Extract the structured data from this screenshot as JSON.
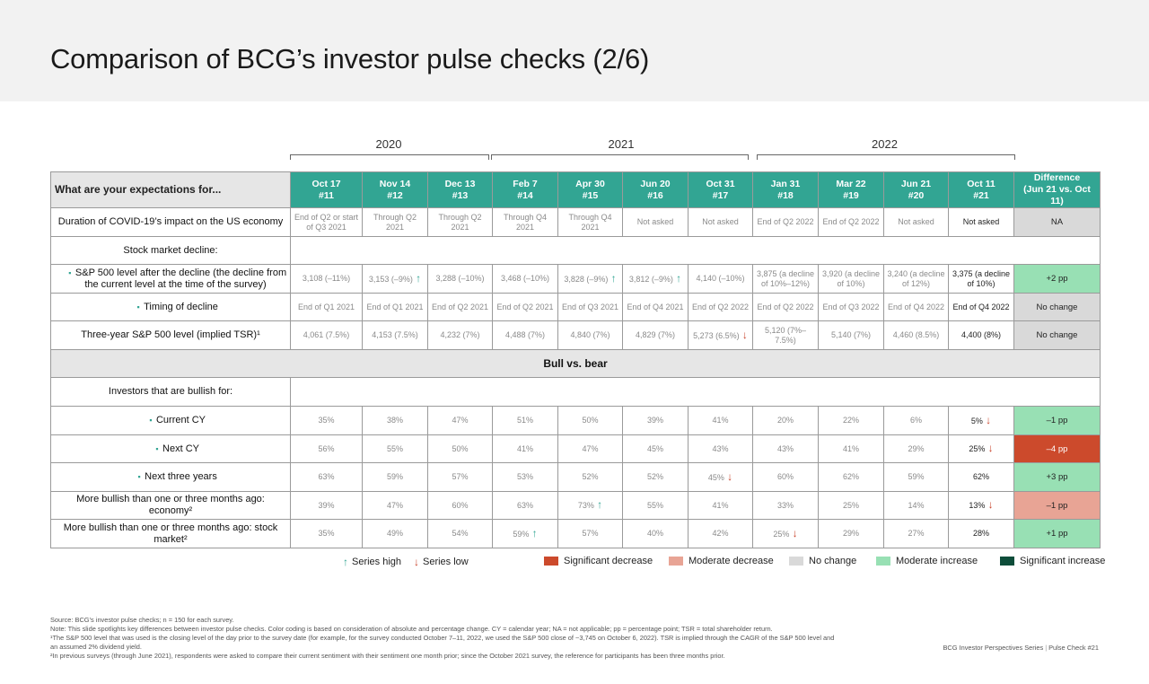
{
  "title": "Comparison of BCG’s investor pulse checks (2/6)",
  "years": [
    "2020",
    "2021",
    "2022"
  ],
  "question_header": "What are your expectations for...",
  "columns": [
    {
      "date": "Oct 17",
      "num": "#11"
    },
    {
      "date": "Nov 14",
      "num": "#12"
    },
    {
      "date": "Dec 13",
      "num": "#13"
    },
    {
      "date": "Feb 7",
      "num": "#14"
    },
    {
      "date": "Apr 30",
      "num": "#15"
    },
    {
      "date": "Jun 20",
      "num": "#16"
    },
    {
      "date": "Oct 31",
      "num": "#17"
    },
    {
      "date": "Jan 31",
      "num": "#18"
    },
    {
      "date": "Mar 22",
      "num": "#19"
    },
    {
      "date": "Jun 21",
      "num": "#20"
    },
    {
      "date": "Oct 11",
      "num": "#21"
    }
  ],
  "diff_header": {
    "line1": "Difference",
    "line2": "(Jun 21 vs. Oct 11)"
  },
  "rows": [
    {
      "type": "data",
      "label": "Duration of COVID-19’s impact on the US economy",
      "level": "main",
      "cells": [
        {
          "t": "End of Q2 or start of Q3 2021"
        },
        {
          "t": "Through Q2 2021"
        },
        {
          "t": "Through Q2 2021"
        },
        {
          "t": "Through Q4 2021"
        },
        {
          "t": "Through Q4 2021"
        },
        {
          "t": "Not asked"
        },
        {
          "t": "Not asked"
        },
        {
          "t": "End of Q2 2022"
        },
        {
          "t": "End of Q2 2022"
        },
        {
          "t": "Not asked"
        },
        {
          "t": "Not asked"
        }
      ],
      "diff": {
        "t": "NA",
        "color": "#d9d9d9"
      }
    },
    {
      "type": "heading",
      "label": "Stock market decline:"
    },
    {
      "type": "data",
      "label": "S&P 500 level after the decline (the decline from the current level at the time of the survey)",
      "level": "sub",
      "cells": [
        {
          "t": "3,108 (–11%)"
        },
        {
          "t": "3,153 (–9%)",
          "a": "up"
        },
        {
          "t": "3,288 (–10%)"
        },
        {
          "t": "3,468 (–10%)"
        },
        {
          "t": "3,828 (–9%)",
          "a": "up"
        },
        {
          "t": "3,812 (–9%)",
          "a": "up"
        },
        {
          "t": "4,140 (–10%)"
        },
        {
          "t": "3,875 (a decline of 10%–12%)"
        },
        {
          "t": "3,920 (a decline of 10%)"
        },
        {
          "t": "3,240 (a decline of 12%)"
        },
        {
          "t": "3,375 (a decline of 10%)"
        }
      ],
      "diff": {
        "t": "+2 pp",
        "color": "#98e0b4"
      }
    },
    {
      "type": "data",
      "label": "Timing of decline",
      "level": "sub",
      "cells": [
        {
          "t": "End of Q1 2021"
        },
        {
          "t": "End of Q1 2021"
        },
        {
          "t": "End of Q2 2021"
        },
        {
          "t": "End of Q2 2021"
        },
        {
          "t": "End of Q3 2021"
        },
        {
          "t": "End of Q4 2021"
        },
        {
          "t": "End of Q2 2022"
        },
        {
          "t": "End of Q2 2022"
        },
        {
          "t": "End of Q3 2022"
        },
        {
          "t": "End of Q4 2022"
        },
        {
          "t": "End of Q4 2022"
        }
      ],
      "diff": {
        "t": "No change",
        "color": "#d9d9d9"
      }
    },
    {
      "type": "data",
      "label": "Three-year S&P 500 level (implied TSR)¹",
      "level": "main",
      "cells": [
        {
          "t": "4,061 (7.5%)"
        },
        {
          "t": "4,153 (7.5%)"
        },
        {
          "t": "4,232 (7%)"
        },
        {
          "t": "4,488 (7%)"
        },
        {
          "t": "4,840 (7%)"
        },
        {
          "t": "4,829 (7%)"
        },
        {
          "t": "5,273 (6.5%)",
          "a": "down"
        },
        {
          "t": "5,120 (7%– 7.5%)"
        },
        {
          "t": "5,140 (7%)"
        },
        {
          "t": "4,460 (8.5%)"
        },
        {
          "t": "4,400 (8%)"
        }
      ],
      "diff": {
        "t": "No change",
        "color": "#d9d9d9"
      }
    },
    {
      "type": "section",
      "label": "Bull vs. bear"
    },
    {
      "type": "heading",
      "label": "Investors that are bullish for:"
    },
    {
      "type": "data",
      "label": "Current CY",
      "level": "sub",
      "cells": [
        {
          "t": "35%"
        },
        {
          "t": "38%"
        },
        {
          "t": "47%"
        },
        {
          "t": "51%"
        },
        {
          "t": "50%"
        },
        {
          "t": "39%"
        },
        {
          "t": "41%"
        },
        {
          "t": "20%"
        },
        {
          "t": "22%"
        },
        {
          "t": "6%"
        },
        {
          "t": "5%",
          "a": "down"
        }
      ],
      "diff": {
        "t": "–1 pp",
        "color": "#98e0b4"
      }
    },
    {
      "type": "data",
      "label": "Next CY",
      "level": "sub",
      "cells": [
        {
          "t": "56%"
        },
        {
          "t": "55%"
        },
        {
          "t": "50%"
        },
        {
          "t": "41%"
        },
        {
          "t": "47%"
        },
        {
          "t": "45%"
        },
        {
          "t": "43%"
        },
        {
          "t": "43%"
        },
        {
          "t": "41%"
        },
        {
          "t": "29%"
        },
        {
          "t": "25%",
          "a": "down"
        }
      ],
      "diff": {
        "t": "–4 pp",
        "color": "#cc4a2c",
        "fg": "#ffffff"
      }
    },
    {
      "type": "data",
      "label": "Next three years",
      "level": "sub",
      "cells": [
        {
          "t": "63%"
        },
        {
          "t": "59%"
        },
        {
          "t": "57%"
        },
        {
          "t": "53%"
        },
        {
          "t": "52%"
        },
        {
          "t": "52%"
        },
        {
          "t": "45%",
          "a": "down"
        },
        {
          "t": "60%"
        },
        {
          "t": "62%"
        },
        {
          "t": "59%"
        },
        {
          "t": "62%"
        }
      ],
      "diff": {
        "t": "+3 pp",
        "color": "#98e0b4"
      }
    },
    {
      "type": "data",
      "label": "More bullish than one or three months ago: economy²",
      "level": "main",
      "cells": [
        {
          "t": "39%"
        },
        {
          "t": "47%"
        },
        {
          "t": "60%"
        },
        {
          "t": "63%"
        },
        {
          "t": "73%",
          "a": "up"
        },
        {
          "t": "55%"
        },
        {
          "t": "41%"
        },
        {
          "t": "33%"
        },
        {
          "t": "25%"
        },
        {
          "t": "14%"
        },
        {
          "t": "13%",
          "a": "down"
        }
      ],
      "diff": {
        "t": "–1 pp",
        "color": "#e8a495"
      }
    },
    {
      "type": "data",
      "label": "More bullish than one or three months ago: stock market²",
      "level": "main",
      "cells": [
        {
          "t": "35%"
        },
        {
          "t": "49%"
        },
        {
          "t": "54%"
        },
        {
          "t": "59%",
          "a": "up"
        },
        {
          "t": "57%"
        },
        {
          "t": "40%"
        },
        {
          "t": "42%"
        },
        {
          "t": "25%",
          "a": "down"
        },
        {
          "t": "29%"
        },
        {
          "t": "27%"
        },
        {
          "t": "28%"
        }
      ],
      "diff": {
        "t": "+1 pp",
        "color": "#98e0b4"
      }
    }
  ],
  "legend": {
    "arrows": [
      {
        "symbol": "↑",
        "label": "Series high",
        "color": "#32a593"
      },
      {
        "symbol": "↓",
        "label": "Series low",
        "color": "#c9442c"
      }
    ],
    "swatches": [
      {
        "label": "Significant decrease",
        "color": "#cc4a2c"
      },
      {
        "label": "Moderate decrease",
        "color": "#e8a495"
      },
      {
        "label": "No change",
        "color": "#d9d9d9"
      },
      {
        "label": "Moderate increase",
        "color": "#98e0b4"
      },
      {
        "label": "Significant increase",
        "color": "#0e4d3a"
      }
    ]
  },
  "footnotes": [
    "Source: BCG’s investor pulse checks; n = 150 for each survey.",
    "Note: This slide spotlights key differences between investor pulse checks. Color coding is based on consideration of absolute and percentage change. CY = calendar year; NA = not applicable; pp = percentage point; TSR = total shareholder return.",
    "¹The S&P 500 level that was used is the closing level of the day prior to the survey date (for example, for the survey conducted October 7–11, 2022, we used the S&P 500 close of ~3,745 on October 6, 2022). TSR is implied through the CAGR of the S&P 500 level and an assumed 2% dividend yield.",
    "²In previous surveys (through June 2021), respondents were asked to compare their current sentiment with their sentiment one month prior; since the October 2021 survey, the reference for participants has been three months prior."
  ],
  "footer": {
    "series": "BCG Investor Perspectives Series",
    "sep": "|",
    "check": "Pulse Check #21"
  }
}
